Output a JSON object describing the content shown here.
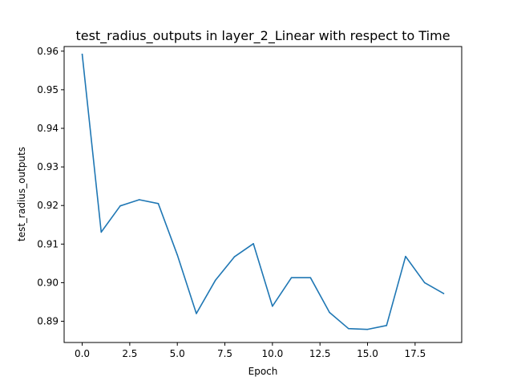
{
  "chart_data": {
    "type": "line",
    "title": "test_radius_outputs in layer_2_Linear with respect to Time",
    "xlabel": "Epoch",
    "ylabel": "test_radius_outputs",
    "xlim": [
      -0.95,
      19.95
    ],
    "ylim": [
      0.8845,
      0.9612
    ],
    "xticks": [
      0,
      2.5,
      5,
      7.5,
      10,
      12.5,
      15,
      17.5
    ],
    "xtick_labels": [
      "0.0",
      "2.5",
      "5.0",
      "7.5",
      "10.0",
      "12.5",
      "15.0",
      "17.5"
    ],
    "yticks": [
      0.89,
      0.9,
      0.91,
      0.92,
      0.93,
      0.94,
      0.95,
      0.96
    ],
    "ytick_labels": [
      "0.89",
      "0.90",
      "0.91",
      "0.92",
      "0.93",
      "0.94",
      "0.95",
      "0.96"
    ],
    "grid": false,
    "series": [
      {
        "color": "#1f77b4",
        "x": [
          0,
          1,
          2,
          3,
          4,
          5,
          6,
          7,
          8,
          9,
          10,
          11,
          12,
          13,
          14,
          15,
          16,
          17,
          18,
          19
        ],
        "y": [
          0.9592,
          0.9131,
          0.9199,
          0.9215,
          0.9205,
          0.9072,
          0.892,
          0.9006,
          0.9067,
          0.9101,
          0.8939,
          0.9013,
          0.9013,
          0.8923,
          0.8881,
          0.8879,
          0.8889,
          0.9068,
          0.9,
          0.8972
        ]
      }
    ]
  }
}
